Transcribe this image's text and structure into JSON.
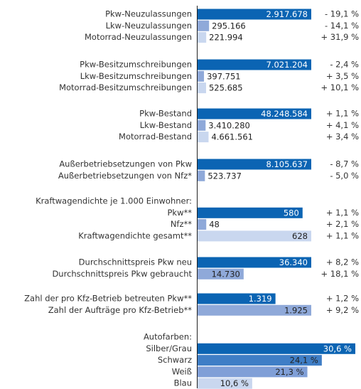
{
  "chart_data": {
    "type": "bar",
    "colors": [
      "#0b64b3",
      "#8fa9d9",
      "#c9d7ef",
      "#c9d7ef"
    ],
    "groups": [
      {
        "categories": [
          "Pkw-Neuzulassungen",
          "Lkw-Neuzulassungen",
          "Motorrad-Neuzulassungen"
        ],
        "values": [
          2917678,
          295166,
          221994
        ],
        "value_labels": [
          "2.917.678",
          "295.166",
          "221.994"
        ],
        "changes": [
          "- 19,1 %",
          "- 14,1 %",
          "+ 31,9 %"
        ]
      },
      {
        "categories": [
          "Pkw-Besitzumschreibungen",
          "Lkw-Besitzumschreibungen",
          "Motorrad-Besitzumschreibungen"
        ],
        "values": [
          7021204,
          397751,
          525685
        ],
        "value_labels": [
          "7.021.204",
          "397.751",
          "525.685"
        ],
        "changes": [
          "- 2,4 %",
          "+ 3,5 %",
          "+ 10,1 %"
        ]
      },
      {
        "categories": [
          "Pkw-Bestand",
          "Lkw-Bestand",
          "Motorrad-Bestand"
        ],
        "values": [
          48248584,
          3410280,
          4661561
        ],
        "value_labels": [
          "48.248.584",
          "3.410.280",
          "4.661.561"
        ],
        "changes": [
          "+ 1,1 %",
          "+ 4,1 %",
          "+ 3,4 %"
        ]
      },
      {
        "categories": [
          "Außerbetriebsetzungen von Pkw",
          "Außerbetriebsetzungen von Nfz*"
        ],
        "values": [
          8105637,
          523737
        ],
        "value_labels": [
          "8.105.637",
          "523.737"
        ],
        "changes": [
          "- 8,7 %",
          "- 5,0 %"
        ]
      },
      {
        "title": "Kraftwagendichte je 1.000 Einwohner:",
        "categories": [
          "Pkw**",
          "Nfz**",
          "Kraftwagendichte gesamt**"
        ],
        "values": [
          580,
          48,
          628
        ],
        "value_labels": [
          "580",
          "48",
          "628"
        ],
        "changes": [
          "+ 1,1 %",
          "+ 2,1 %",
          "+ 1,1 %"
        ]
      },
      {
        "categories": [
          "Durchschnittspreis Pkw neu",
          "Durchschnittspreis Pkw gebraucht"
        ],
        "values": [
          36340,
          14730
        ],
        "value_labels": [
          "36.340",
          "14.730"
        ],
        "changes": [
          "+ 8,2 %",
          "+ 18,1 %"
        ]
      },
      {
        "categories": [
          "Zahl der pro Kfz-Betrieb betreuten Pkw**",
          "Zahl der Aufträge pro Kfz-Betrieb**"
        ],
        "values": [
          1319,
          1925
        ],
        "value_labels": [
          "1.319",
          "1.925"
        ],
        "changes": [
          "+ 1,2 %",
          "+ 9,2 %"
        ]
      },
      {
        "title": "Autofarben:",
        "categories": [
          "Silber/Grau",
          "Schwarz",
          "Weiß",
          "Blau"
        ],
        "values": [
          30.6,
          24.1,
          21.3,
          10.6
        ],
        "value_labels": [
          "30,6 %",
          "24,1 %",
          "21,3 %",
          "10,6 %"
        ],
        "colors": [
          "#0b64b3",
          "#3f7ec6",
          "#809fd7",
          "#c9d7ef"
        ]
      }
    ]
  }
}
